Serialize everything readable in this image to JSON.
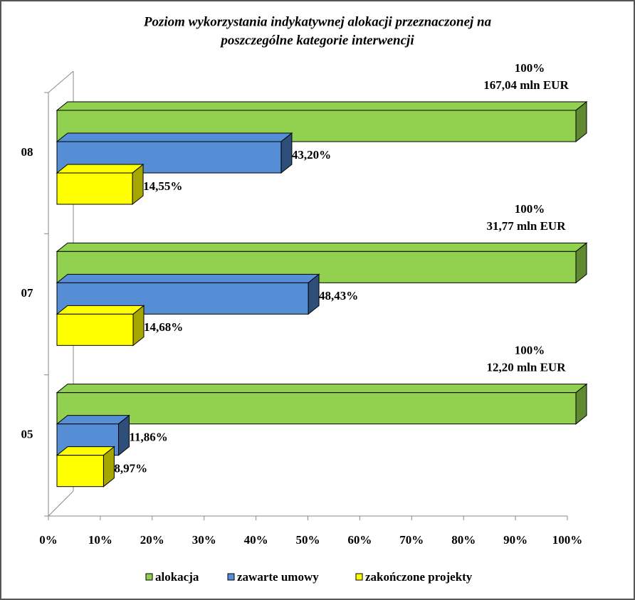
{
  "chart_data": {
    "type": "bar3d",
    "title": [
      "Poziom wykorzystania indykatywnej alokacji przeznaczonej na",
      "poszczególne kategorie interwencji"
    ],
    "categories": [
      "08",
      "07",
      "05"
    ],
    "series": [
      {
        "name": "alokacja",
        "color": "#92d050",
        "side": "#5f8a30",
        "values": [
          100,
          100,
          100
        ],
        "value_labels": [
          "100%",
          "100%",
          "100%"
        ],
        "amount_labels": [
          "167,04 mln EUR",
          "31,77 mln EUR",
          "12,20 mln EUR"
        ]
      },
      {
        "name": "zawarte umowy",
        "color": "#558ed5",
        "side": "#2e4f7a",
        "values": [
          43.2,
          48.43,
          11.86
        ],
        "value_labels": [
          "43,20%",
          "48,43%",
          "11,86%"
        ]
      },
      {
        "name": "zakończone projekty",
        "color": "#ffff00",
        "side": "#a6a600",
        "values": [
          14.55,
          14.68,
          8.97
        ],
        "value_labels": [
          "14,55%",
          "14,68%",
          "8,97%"
        ]
      }
    ],
    "xlim": [
      0,
      100
    ],
    "xticks": [
      {
        "value": 0,
        "label": "0%"
      },
      {
        "value": 10,
        "label": "10%"
      },
      {
        "value": 20,
        "label": "20%"
      },
      {
        "value": 30,
        "label": "30%"
      },
      {
        "value": 40,
        "label": "40%"
      },
      {
        "value": 50,
        "label": "50%"
      },
      {
        "value": 60,
        "label": "60%"
      },
      {
        "value": 70,
        "label": "70%"
      },
      {
        "value": 80,
        "label": "80%"
      },
      {
        "value": 90,
        "label": "90%"
      },
      {
        "value": 100,
        "label": "100%"
      }
    ],
    "grid": false
  }
}
